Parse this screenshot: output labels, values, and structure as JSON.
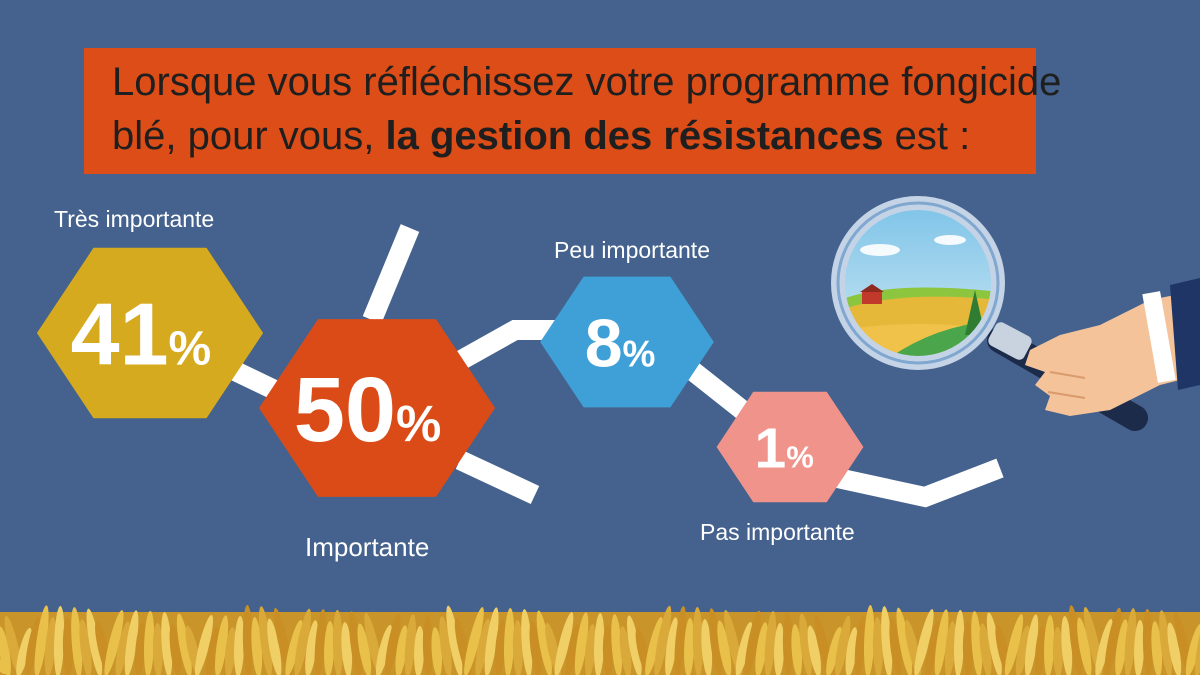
{
  "question": {
    "line1": "Lorsque vous réfléchissez votre programme fongicide",
    "line2_before": "blé, pour vous, ",
    "line2_bold": "la gestion des résistances",
    "line2_after": " est :"
  },
  "colors": {
    "background": "#44628d",
    "header": "#dc4d18",
    "tres_importante": "#d6aa1f",
    "importante": "#db4b18",
    "peu_importante": "#3ea0d6",
    "pas_importante": "#f0938b",
    "connector": "#ffffff",
    "wheat": "#e0b23c"
  },
  "chart_data": {
    "type": "bar",
    "title": "Lorsque vous réfléchissez votre programme fongicide blé, pour vous, la gestion des résistances est :",
    "categories": [
      "Très importante",
      "Importante",
      "Peu importante",
      "Pas importante"
    ],
    "values": [
      41,
      50,
      8,
      1
    ],
    "value_labels": [
      "41",
      "50",
      "8",
      "1"
    ],
    "unit": "%"
  },
  "illustration": {
    "icon": "magnifying-glass-hand-icon",
    "scene": "farm-landscape"
  },
  "footer": {
    "icon": "wheat-field-border"
  }
}
